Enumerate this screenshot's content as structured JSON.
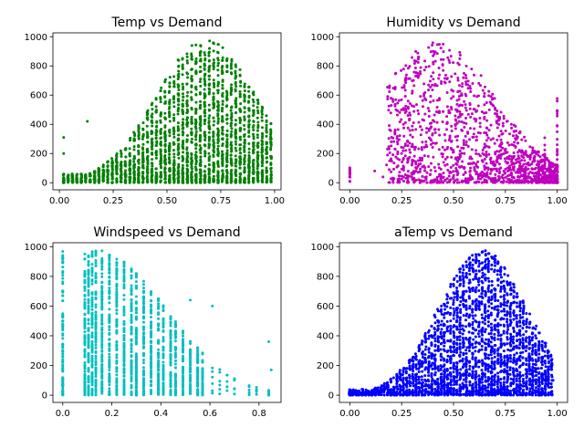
{
  "chart_data": [
    {
      "type": "scatter",
      "title": "Temp vs Demand",
      "color": "#008000",
      "xlim": [
        -0.03,
        1.03
      ],
      "ylim": [
        -48.6,
        1026.6
      ],
      "xticks": [
        "0.00",
        "0.25",
        "0.50",
        "0.75",
        "1.00"
      ],
      "yticks": [
        "0",
        "200",
        "400",
        "600",
        "800",
        "1000"
      ],
      "grid": false,
      "points_description": "Dense vertical columns of points at discrete normalized temperature values from about 0.02 to 0.98; demand 0 to about 977, upper envelope peaking near temp 0.65-0.75"
    },
    {
      "type": "scatter",
      "title": "Humidity vs Demand",
      "color": "#bf00bf",
      "xlim": [
        -0.05,
        1.05
      ],
      "ylim": [
        -48.6,
        1026.6
      ],
      "xticks": [
        "0.00",
        "0.25",
        "0.50",
        "0.75",
        "1.00"
      ],
      "yticks": [
        "0",
        "200",
        "400",
        "600",
        "800",
        "1000"
      ],
      "grid": false,
      "points_description": "Points spread across humidity 0.2 to 1.0 with a few near 0; demand 0 to about 970, highest values around humidity 0.3-0.5"
    },
    {
      "type": "scatter",
      "title": "Windspeed vs Demand",
      "color": "#00bfbf",
      "xlim": [
        -0.04,
        0.89
      ],
      "ylim": [
        -48.6,
        1026.6
      ],
      "xticks": [
        "0.0",
        "0.2",
        "0.4",
        "0.6",
        "0.8"
      ],
      "yticks": [
        "0",
        "200",
        "400",
        "600",
        "800",
        "1000"
      ],
      "grid": false,
      "points_description": "Discrete vertical columns at windspeed 0.0 and 0.09 onward in steps; demand up to about 977, thinning beyond windspeed 0.5"
    },
    {
      "type": "scatter",
      "title": "aTemp vs Demand",
      "color": "#0000ff",
      "xlim": [
        -0.05,
        1.05
      ],
      "ylim": [
        -48.6,
        1026.6
      ],
      "xticks": [
        "0.00",
        "0.25",
        "0.50",
        "0.75",
        "1.00"
      ],
      "yticks": [
        "0",
        "200",
        "400",
        "600",
        "800",
        "1000"
      ],
      "grid": false,
      "points_description": "Dense columns across apparent temperature 0 to about 0.98; demand 0 to about 970, peak region around 0.6-0.75"
    }
  ]
}
